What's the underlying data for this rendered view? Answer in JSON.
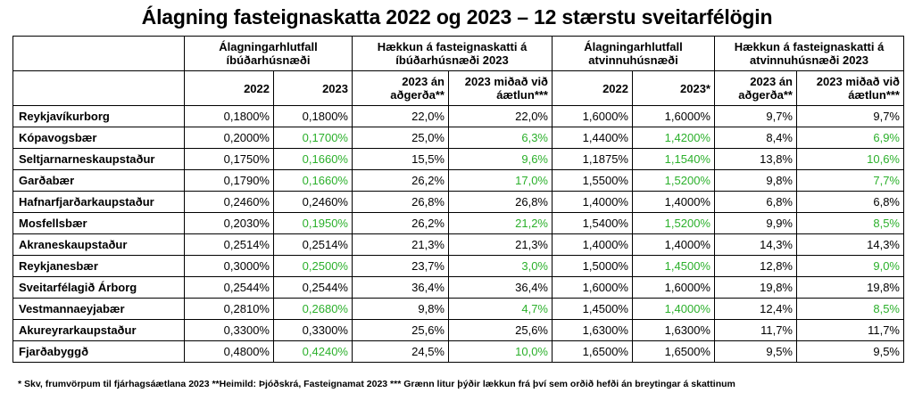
{
  "title": "Álagning fasteignaskatta 2022 og 2023 – 12 stærstu sveitarfélögin",
  "group_headers": [
    "Álagningarhlutfall íbúðarhúsnæði",
    "Hækkun á fasteignaskatti á íbúðarhúsnæði 2023",
    "Álagningarhlutfall atvinnuhúsnæði",
    "Hækkun á fasteignaskatti á atvinnuhúsnæði 2023"
  ],
  "sub_headers": [
    "2022",
    "2023",
    "2023 án aðgerða**",
    "2023 miðað við áætlun***",
    "2022",
    "2023*",
    "2023 án aðgerða**",
    "2023 miðað við áætlun***"
  ],
  "colors": {
    "green": "#2bb02b"
  },
  "rows": [
    {
      "name": "Reykjavíkurborg",
      "values": [
        "0,1800%",
        "0,1800%",
        "22,0%",
        "22,0%",
        "1,6000%",
        "1,6000%",
        "9,7%",
        "9,7%"
      ],
      "green": [
        false,
        false,
        false,
        false,
        false,
        false,
        false,
        false
      ]
    },
    {
      "name": "Kópavogsbær",
      "values": [
        "0,2000%",
        "0,1700%",
        "25,0%",
        "6,3%",
        "1,4400%",
        "1,4200%",
        "8,4%",
        "6,9%"
      ],
      "green": [
        false,
        true,
        false,
        true,
        false,
        true,
        false,
        true
      ]
    },
    {
      "name": "Seltjarnarneskaupstaður",
      "values": [
        "0,1750%",
        "0,1660%",
        "15,5%",
        "9,6%",
        "1,1875%",
        "1,1540%",
        "13,8%",
        "10,6%"
      ],
      "green": [
        false,
        true,
        false,
        true,
        false,
        true,
        false,
        true
      ]
    },
    {
      "name": "Garðabær",
      "values": [
        "0,1790%",
        "0,1660%",
        "26,2%",
        "17,0%",
        "1,5500%",
        "1,5200%",
        "9,8%",
        "7,7%"
      ],
      "green": [
        false,
        true,
        false,
        true,
        false,
        true,
        false,
        true
      ]
    },
    {
      "name": "Hafnarfjarðarkaupstaður",
      "values": [
        "0,2460%",
        "0,2460%",
        "26,8%",
        "26,8%",
        "1,4000%",
        "1,4000%",
        "6,8%",
        "6,8%"
      ],
      "green": [
        false,
        false,
        false,
        false,
        false,
        false,
        false,
        false
      ]
    },
    {
      "name": "Mosfellsbær",
      "values": [
        "0,2030%",
        "0,1950%",
        "26,2%",
        "21,2%",
        "1,5400%",
        "1,5200%",
        "9,9%",
        "8,5%"
      ],
      "green": [
        false,
        true,
        false,
        true,
        false,
        true,
        false,
        true
      ]
    },
    {
      "name": "Akraneskaupstaður",
      "values": [
        "0,2514%",
        "0,2514%",
        "21,3%",
        "21,3%",
        "1,4000%",
        "1,4000%",
        "14,3%",
        "14,3%"
      ],
      "green": [
        false,
        false,
        false,
        false,
        false,
        false,
        false,
        false
      ]
    },
    {
      "name": "Reykjanesbær",
      "values": [
        "0,3000%",
        "0,2500%",
        "23,7%",
        "3,0%",
        "1,5000%",
        "1,4500%",
        "12,8%",
        "9,0%"
      ],
      "green": [
        false,
        true,
        false,
        true,
        false,
        true,
        false,
        true
      ]
    },
    {
      "name": "Sveitarfélagið Árborg",
      "values": [
        "0,2544%",
        "0,2544%",
        "36,4%",
        "36,4%",
        "1,6000%",
        "1,6000%",
        "19,8%",
        "19,8%"
      ],
      "green": [
        false,
        false,
        false,
        false,
        false,
        false,
        false,
        false
      ]
    },
    {
      "name": "Vestmannaeyjabær",
      "values": [
        "0,2810%",
        "0,2680%",
        "9,8%",
        "4,7%",
        "1,4500%",
        "1,4000%",
        "12,4%",
        "8,5%"
      ],
      "green": [
        false,
        true,
        false,
        true,
        false,
        true,
        false,
        true
      ]
    },
    {
      "name": "Akureyrarkaupstaður",
      "values": [
        "0,3300%",
        "0,3300%",
        "25,6%",
        "25,6%",
        "1,6300%",
        "1,6300%",
        "11,7%",
        "11,7%"
      ],
      "green": [
        false,
        false,
        false,
        false,
        false,
        false,
        false,
        false
      ]
    },
    {
      "name": "Fjarðabyggð",
      "values": [
        "0,4800%",
        "0,4240%",
        "24,5%",
        "10,0%",
        "1,6500%",
        "1,6500%",
        "9,5%",
        "9,5%"
      ],
      "green": [
        false,
        true,
        false,
        true,
        false,
        false,
        false,
        false
      ]
    }
  ],
  "footnote": "* Skv, frumvörpum til fjárhagsáætlana 2023    **Heimild: Þjóðskrá, Fasteignamat 2023 *** Grænn litur þýðir lækkun frá því sem orðið hefði án breytingar á skattinum"
}
